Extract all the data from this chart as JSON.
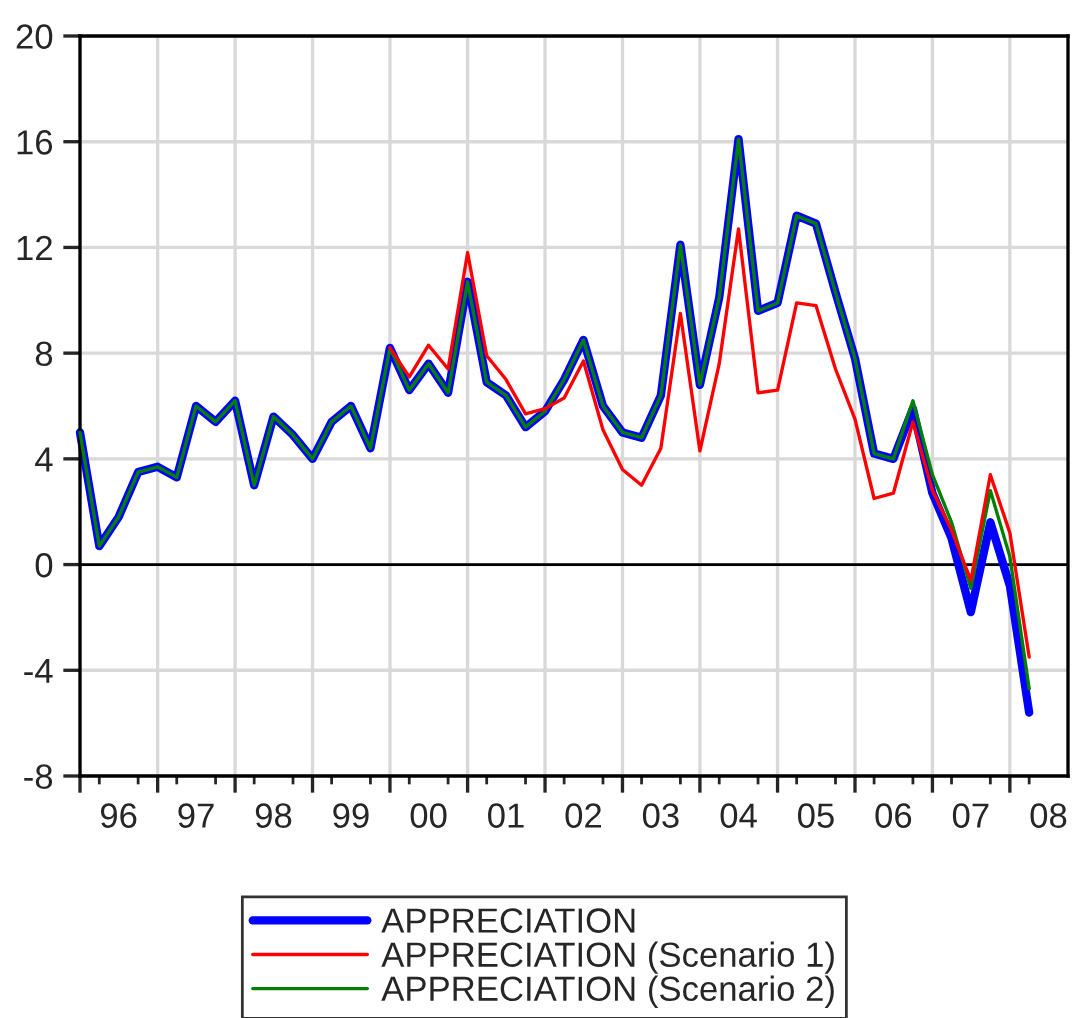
{
  "chart_data": {
    "type": "line",
    "x": [
      "1996-01",
      "1996-04",
      "1996-07",
      "1996-10",
      "1997-01",
      "1997-04",
      "1997-07",
      "1997-10",
      "1998-01",
      "1998-04",
      "1998-07",
      "1998-10",
      "1999-01",
      "1999-04",
      "1999-07",
      "1999-10",
      "2000-01",
      "2000-04",
      "2000-07",
      "2000-10",
      "2001-01",
      "2001-04",
      "2001-07",
      "2001-10",
      "2002-01",
      "2002-04",
      "2002-07",
      "2002-10",
      "2003-01",
      "2003-04",
      "2003-07",
      "2003-10",
      "2004-01",
      "2004-04",
      "2004-07",
      "2004-10",
      "2005-01",
      "2005-04",
      "2005-07",
      "2005-10",
      "2006-01",
      "2006-04",
      "2006-07",
      "2006-10",
      "2007-01",
      "2007-04",
      "2007-07",
      "2007-10",
      "2008-01",
      "2008-04"
    ],
    "series": [
      {
        "name": "APPRECIATION",
        "color": "#0000ff",
        "values": [
          5.0,
          0.7,
          1.8,
          3.5,
          3.7,
          3.3,
          6.0,
          5.4,
          6.2,
          3.0,
          5.6,
          4.9,
          4.0,
          5.4,
          6.0,
          4.4,
          8.2,
          6.6,
          7.6,
          6.5,
          10.7,
          6.9,
          6.4,
          5.2,
          5.8,
          7.0,
          8.5,
          6.0,
          5.0,
          4.8,
          6.4,
          12.1,
          6.8,
          10.1,
          16.1,
          9.6,
          9.9,
          13.2,
          12.9,
          10.3,
          7.8,
          4.2,
          4.0,
          5.9,
          2.7,
          1.0,
          -1.8,
          1.6,
          -0.8,
          -5.6
        ]
      },
      {
        "name": "APPRECIATION (Scenario 1)",
        "color": "#ff0000",
        "values": [
          null,
          null,
          null,
          null,
          null,
          null,
          null,
          null,
          null,
          null,
          null,
          null,
          null,
          null,
          null,
          null,
          8.2,
          7.1,
          8.3,
          7.4,
          11.8,
          7.9,
          7.0,
          5.7,
          5.9,
          6.3,
          7.7,
          5.1,
          3.6,
          3.0,
          4.4,
          9.5,
          4.3,
          7.6,
          12.7,
          6.5,
          6.6,
          9.9,
          9.8,
          7.4,
          5.5,
          2.5,
          2.7,
          5.4,
          2.8,
          1.3,
          -0.6,
          3.4,
          1.2,
          -3.5
        ]
      },
      {
        "name": "APPRECIATION (Scenario 2)",
        "color": "#008000",
        "values": [
          5.0,
          0.7,
          1.8,
          3.5,
          3.7,
          3.3,
          6.0,
          5.4,
          6.2,
          3.0,
          5.6,
          4.9,
          4.0,
          5.4,
          6.0,
          4.4,
          8.2,
          6.6,
          7.6,
          6.5,
          10.7,
          6.9,
          6.4,
          5.2,
          5.8,
          7.0,
          8.5,
          6.0,
          5.0,
          4.8,
          6.4,
          12.1,
          6.8,
          10.1,
          16.1,
          9.6,
          9.9,
          13.2,
          12.9,
          10.3,
          7.8,
          4.2,
          4.0,
          6.2,
          3.4,
          1.6,
          -0.9,
          2.8,
          0.3,
          -4.7
        ]
      }
    ],
    "xlim": [
      "1996-01",
      "2008-10"
    ],
    "xticks": [
      {
        "value": "1996-01",
        "label": null
      },
      {
        "value": "1996-07",
        "label": "96"
      },
      {
        "value": "1997-01",
        "label": null
      },
      {
        "value": "1997-07",
        "label": "97"
      },
      {
        "value": "1998-01",
        "label": null
      },
      {
        "value": "1998-07",
        "label": "98"
      },
      {
        "value": "1999-01",
        "label": null
      },
      {
        "value": "1999-07",
        "label": "99"
      },
      {
        "value": "2000-01",
        "label": null
      },
      {
        "value": "2000-07",
        "label": "00"
      },
      {
        "value": "2001-01",
        "label": null
      },
      {
        "value": "2001-07",
        "label": "01"
      },
      {
        "value": "2002-01",
        "label": null
      },
      {
        "value": "2002-07",
        "label": "02"
      },
      {
        "value": "2003-01",
        "label": null
      },
      {
        "value": "2003-07",
        "label": "03"
      },
      {
        "value": "2004-01",
        "label": null
      },
      {
        "value": "2004-07",
        "label": "04"
      },
      {
        "value": "2005-01",
        "label": null
      },
      {
        "value": "2005-07",
        "label": "05"
      },
      {
        "value": "2006-01",
        "label": null
      },
      {
        "value": "2006-07",
        "label": "06"
      },
      {
        "value": "2007-01",
        "label": null
      },
      {
        "value": "2007-07",
        "label": "07"
      },
      {
        "value": "2008-01",
        "label": null
      },
      {
        "value": "2008-07",
        "label": "08"
      }
    ],
    "ylim": [
      -8,
      20
    ],
    "yticks": [
      -8,
      -4,
      0,
      4,
      8,
      12,
      16,
      20
    ],
    "ref_lines": [
      {
        "axis": "y",
        "value": 0,
        "color": "#000000"
      }
    ],
    "grid": true,
    "legend": "bottom",
    "line_style": "solid",
    "marker": "none"
  }
}
